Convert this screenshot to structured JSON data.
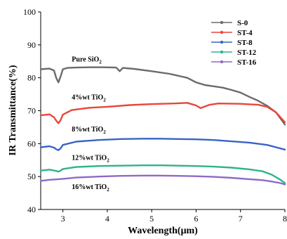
{
  "chart_data": {
    "type": "line",
    "xlabel": "Wavelength(μm)",
    "ylabel": "IR Transmittance(%)",
    "xlim": [
      2.5,
      8
    ],
    "ylim": [
      40,
      100
    ],
    "xticks": [
      "3",
      "4",
      "5",
      "6",
      "7",
      "8"
    ],
    "yticks": [
      "40",
      "50",
      "60",
      "70",
      "80",
      "90",
      "100"
    ],
    "legend_position": "top-right",
    "series": [
      {
        "name": "S-0",
        "color": "#6b6b6b",
        "x": [
          2.5,
          2.7,
          2.8,
          2.85,
          2.9,
          2.95,
          3.0,
          3.1,
          3.3,
          3.6,
          3.9,
          4.2,
          4.28,
          4.35,
          4.6,
          5.0,
          5.4,
          5.8,
          6.0,
          6.2,
          6.4,
          6.6,
          6.8,
          7.0,
          7.2,
          7.4,
          7.6,
          7.8,
          8.0
        ],
        "y": [
          82.6,
          82.8,
          82.2,
          80.0,
          78.6,
          80.5,
          82.6,
          83.0,
          83.1,
          83.2,
          83.2,
          83.1,
          82.0,
          83.0,
          82.7,
          82.0,
          81.2,
          80.0,
          78.6,
          77.8,
          77.4,
          77.0,
          76.3,
          75.5,
          74.2,
          73.0,
          71.5,
          69.5,
          65.8
        ]
      },
      {
        "name": "ST-4",
        "color": "#e8463c",
        "x": [
          2.5,
          2.7,
          2.8,
          2.85,
          2.9,
          2.95,
          3.0,
          3.2,
          3.6,
          4.0,
          4.5,
          5.0,
          5.5,
          5.8,
          6.0,
          6.1,
          6.3,
          6.5,
          7.0,
          7.4,
          7.6,
          7.8,
          8.0
        ],
        "y": [
          68.6,
          68.9,
          68.0,
          67.0,
          66.2,
          67.2,
          68.8,
          70.2,
          70.9,
          71.2,
          71.7,
          72.0,
          72.2,
          72.4,
          71.6,
          70.8,
          71.8,
          72.2,
          72.1,
          71.8,
          71.2,
          69.5,
          66.5
        ]
      },
      {
        "name": "ST-8",
        "color": "#3a63c4",
        "x": [
          2.5,
          2.7,
          2.8,
          2.85,
          2.9,
          2.95,
          3.0,
          3.3,
          3.8,
          4.3,
          4.8,
          5.2,
          5.6,
          6.0,
          6.4,
          6.8,
          7.2,
          7.6,
          7.8,
          8.0
        ],
        "y": [
          58.9,
          59.2,
          58.8,
          58.3,
          58.0,
          58.6,
          59.6,
          60.6,
          61.1,
          61.4,
          61.5,
          61.5,
          61.4,
          61.3,
          61.1,
          60.7,
          60.3,
          59.6,
          58.9,
          58.2
        ]
      },
      {
        "name": "ST-12",
        "color": "#2fb38a",
        "x": [
          2.5,
          2.7,
          2.85,
          2.9,
          2.95,
          3.0,
          3.3,
          3.8,
          4.3,
          4.8,
          5.2,
          5.6,
          6.0,
          6.4,
          6.8,
          7.2,
          7.5,
          7.7,
          7.9,
          8.0
        ],
        "y": [
          51.8,
          52.1,
          51.7,
          51.5,
          51.8,
          52.3,
          52.9,
          53.2,
          53.3,
          53.4,
          53.4,
          53.3,
          53.2,
          53.0,
          52.7,
          52.2,
          51.6,
          50.6,
          49.0,
          48.0
        ]
      },
      {
        "name": "ST-16",
        "color": "#8e6ac6",
        "x": [
          2.5,
          2.7,
          2.9,
          3.0,
          3.3,
          3.8,
          4.3,
          4.8,
          5.2,
          5.6,
          6.0,
          6.4,
          6.8,
          7.2,
          7.5,
          7.7,
          7.9,
          8.0
        ],
        "y": [
          48.7,
          49.0,
          49.2,
          49.3,
          49.7,
          50.0,
          50.2,
          50.3,
          50.3,
          50.2,
          50.1,
          49.9,
          49.6,
          49.2,
          48.9,
          48.5,
          48.0,
          47.6
        ]
      }
    ],
    "annotations": [
      {
        "label": "Pure SiO",
        "sub": "2",
        "x": 3.2,
        "y": 85.0
      },
      {
        "label": "4%wt TiO",
        "sub": "2",
        "x": 3.2,
        "y": 73.4
      },
      {
        "label": "8%wt TiO",
        "sub": "2",
        "x": 3.2,
        "y": 63.7
      },
      {
        "label": "12%wt TiO",
        "sub": "2",
        "x": 3.2,
        "y": 55.1
      },
      {
        "label": "16%wt TiO",
        "sub": "2",
        "x": 3.2,
        "y": 46.2
      }
    ]
  }
}
